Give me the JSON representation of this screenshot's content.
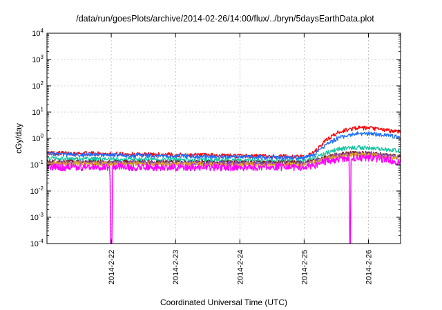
{
  "chart_data": {
    "type": "line",
    "title": "/data/run/goesPlots/archive/2014-02-26/14:00/flux/../bryn/5daysEarthData.plot",
    "xlabel": "Coordinated Universal Time (UTC)",
    "ylabel": "cGy/day",
    "yscale": "log",
    "ylim": [
      0.0001,
      10000
    ],
    "xlim": [
      0,
      5.5
    ],
    "grid": true,
    "legend": "none",
    "x_ticks": [
      {
        "value": 1.0,
        "label": "2014-2-22"
      },
      {
        "value": 2.0,
        "label": "2014-2-23"
      },
      {
        "value": 3.0,
        "label": "2014-2-24"
      },
      {
        "value": 4.0,
        "label": "2014-2-25"
      },
      {
        "value": 5.0,
        "label": "2014-2-26"
      }
    ],
    "y_ticks": [
      {
        "value": 0.0001,
        "base": "10",
        "exp": "-4"
      },
      {
        "value": 0.001,
        "base": "10",
        "exp": "-3"
      },
      {
        "value": 0.01,
        "base": "10",
        "exp": "-2"
      },
      {
        "value": 0.1,
        "base": "10",
        "exp": "-1"
      },
      {
        "value": 1,
        "base": "10",
        "exp": "0"
      },
      {
        "value": 10,
        "base": "10",
        "exp": "1"
      },
      {
        "value": 100,
        "base": "10",
        "exp": "2"
      },
      {
        "value": 1000,
        "base": "10",
        "exp": "3"
      },
      {
        "value": 10000,
        "base": "10",
        "exp": "4"
      }
    ],
    "series": [
      {
        "color": "#ff0000",
        "x": [
          0,
          4.0,
          4.15,
          4.35,
          4.55,
          4.8,
          5.05,
          5.3,
          5.5
        ],
        "y": [
          0.28,
          0.2,
          0.28,
          0.9,
          1.8,
          2.5,
          2.4,
          2.0,
          1.8
        ]
      },
      {
        "color": "#1f6fff",
        "x": [
          0,
          4.0,
          4.15,
          4.35,
          4.55,
          4.8,
          5.05,
          5.3,
          5.5
        ],
        "y": [
          0.25,
          0.18,
          0.24,
          0.6,
          1.1,
          1.5,
          1.5,
          1.3,
          1.1
        ]
      },
      {
        "color": "#19c4a0",
        "x": [
          0,
          4.0,
          4.15,
          4.35,
          4.55,
          4.8,
          5.05,
          5.3,
          5.5
        ],
        "y": [
          0.17,
          0.14,
          0.18,
          0.28,
          0.4,
          0.45,
          0.43,
          0.37,
          0.33
        ]
      },
      {
        "color": "#7a2020",
        "x": [
          0,
          4.0,
          4.15,
          4.35,
          4.55,
          4.8,
          5.05,
          5.3,
          5.5
        ],
        "y": [
          0.13,
          0.12,
          0.14,
          0.2,
          0.25,
          0.28,
          0.27,
          0.23,
          0.2
        ]
      },
      {
        "color": "#8a4fc0",
        "x": [
          0,
          4.0,
          4.15,
          4.35,
          4.55,
          4.8,
          5.05,
          5.3,
          5.5
        ],
        "y": [
          0.12,
          0.11,
          0.13,
          0.18,
          0.23,
          0.26,
          0.25,
          0.21,
          0.18
        ]
      },
      {
        "color": "#e0a020",
        "x": [
          0,
          4.0,
          4.15,
          4.35,
          4.55,
          4.8,
          5.05,
          5.3,
          5.5
        ],
        "y": [
          0.11,
          0.1,
          0.12,
          0.17,
          0.21,
          0.24,
          0.23,
          0.19,
          0.16
        ]
      },
      {
        "color": "#ff00ff",
        "x": [
          0,
          0.98,
          0.99,
          1.0,
          1.01,
          1.02,
          2.0,
          3.0,
          4.0,
          4.15,
          4.35,
          4.55,
          4.7,
          4.71,
          4.72,
          4.73,
          4.8,
          5.05,
          5.3,
          5.5
        ],
        "y": [
          0.08,
          0.08,
          0.0001,
          0.0001,
          0.0001,
          0.08,
          0.08,
          0.08,
          0.08,
          0.09,
          0.13,
          0.17,
          0.18,
          0.0001,
          0.0001,
          0.18,
          0.19,
          0.18,
          0.15,
          0.12
        ]
      }
    ]
  }
}
